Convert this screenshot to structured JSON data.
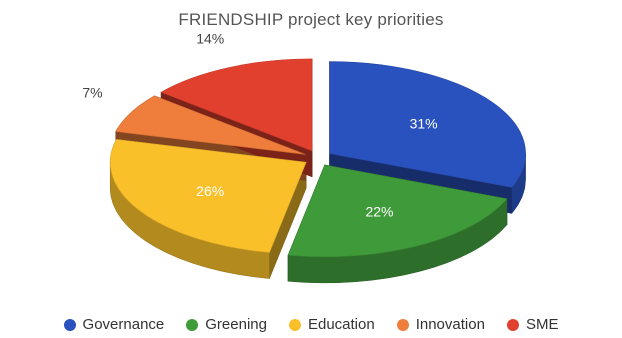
{
  "chart_data": {
    "type": "pie",
    "title": "FRIENDSHIP project key priorities",
    "categories": [
      "Governance",
      "Greening",
      "Education",
      "Innovation",
      "SME"
    ],
    "values": [
      31,
      22,
      26,
      7,
      14
    ],
    "data_labels": [
      "31%",
      "22%",
      "26%",
      "7%",
      "14%"
    ],
    "colors": [
      "#2a52be",
      "#3f9a3a",
      "#f9c02a",
      "#ef7d3b",
      "#e2402e"
    ],
    "legend_placement": "bottom",
    "style": "3d-exploded"
  }
}
